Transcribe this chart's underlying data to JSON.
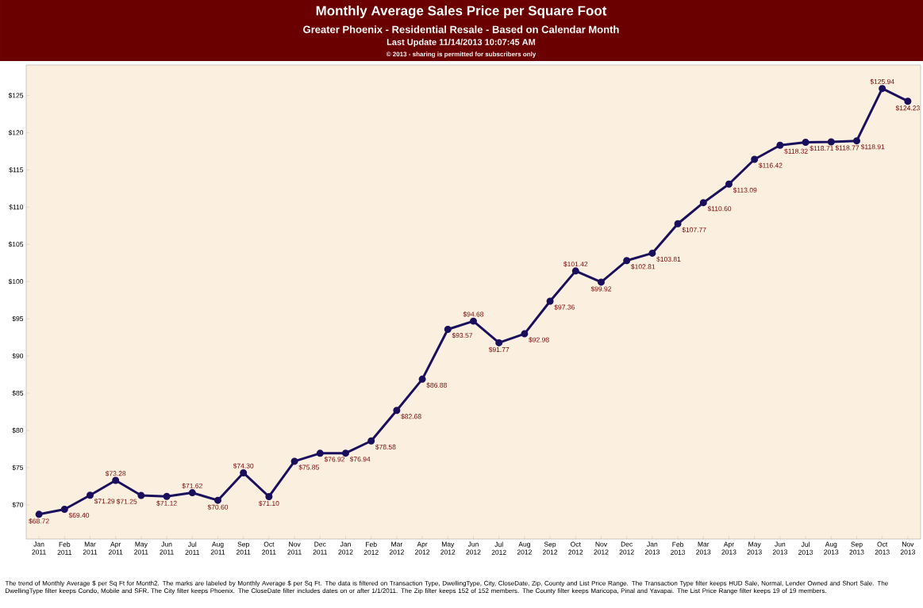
{
  "chart_data": {
    "type": "line",
    "title": "Monthly Average Sales Price per Square Foot",
    "subtitle": "Greater Phoenix - Residential Resale - Based on Calendar Month",
    "annotations": [
      "Last Update 11/14/2013 10:07:45 AM",
      "© 2013 - sharing is permitted for subscribers only",
      "The trend of Monthly Average $ per Sq Ft for Month2.  The marks are labeled by Monthly Average $ per Sq Ft. The data is filtered on Transaction Type, DwellingType, City, CloseDate, Zip, County and List Price Range. The Transaction Type filter keeps HUD Sale, Normal, Lender Owned and Short Sale. The DwellingType filter keeps Condo, Mobile and SFR. The City filter keeps Phoenix. The CloseDate filter includes dates on or after 1/1/2011. The Zip filter keeps 152 of 152 members. The County filter keeps Maricopa, Pinal and Yavapai. The List Price Range filter keeps 19 of 19 members."
    ],
    "categories": [
      "Jan 2011",
      "Feb 2011",
      "Mar 2011",
      "Apr 2011",
      "May 2011",
      "Jun 2011",
      "Jul 2011",
      "Aug 2011",
      "Sep 2011",
      "Oct 2011",
      "Nov 2011",
      "Dec 2011",
      "Jan 2012",
      "Feb 2012",
      "Mar 2012",
      "Apr 2012",
      "May 2012",
      "Jun 2012",
      "Jul 2012",
      "Aug 2012",
      "Sep 2012",
      "Oct 2012",
      "Nov 2012",
      "Dec 2012",
      "Jan 2013",
      "Feb 2013",
      "Mar 2013",
      "Apr 2013",
      "May 2013",
      "Jun 2013",
      "Jul 2013",
      "Aug 2013",
      "Sep 2013",
      "Oct 2013",
      "Nov 2013"
    ],
    "values": [
      68.72,
      69.4,
      71.29,
      73.28,
      71.25,
      71.12,
      71.62,
      70.6,
      74.3,
      71.1,
      75.85,
      76.92,
      76.94,
      78.58,
      82.68,
      86.88,
      93.57,
      94.68,
      91.77,
      92.98,
      97.36,
      101.42,
      99.92,
      102.81,
      103.81,
      107.77,
      110.6,
      113.09,
      116.42,
      118.32,
      118.71,
      118.77,
      118.91,
      125.94,
      124.23
    ],
    "value_labels": [
      "$68.72",
      "$69.40",
      "$71.29",
      "$73.28",
      "$71.25",
      "$71.12",
      "$71.62",
      "$70.60",
      "$74.30",
      "$71.10",
      "$75.85",
      "$76.92",
      "$76.94",
      "$78.58",
      "$82.68",
      "$86.88",
      "$93.57",
      "$94.68",
      "$91.77",
      "$92.98",
      "$97.36",
      "$101.42",
      "$99.92",
      "$102.81",
      "$103.81",
      "$107.77",
      "$110.60",
      "$113.09",
      "$116.42",
      "$118.32",
      "$118.71",
      "$118.77",
      "$118.91",
      "$125.94",
      "$124.23"
    ],
    "color": "#1a0f5c",
    "marker": "circle",
    "line_style": "solid",
    "ylim": [
      65.4,
      129.1
    ],
    "yticks": [
      {
        "value": 70,
        "label": "$70"
      },
      {
        "value": 75,
        "label": "$75"
      },
      {
        "value": 80,
        "label": "$80"
      },
      {
        "value": 85,
        "label": "$85"
      },
      {
        "value": 90,
        "label": "$90"
      },
      {
        "value": 95,
        "label": "$95"
      },
      {
        "value": 100,
        "label": "$100"
      },
      {
        "value": 105,
        "label": "$105"
      },
      {
        "value": 110,
        "label": "$110"
      },
      {
        "value": 115,
        "label": "$115"
      },
      {
        "value": 120,
        "label": "$120"
      },
      {
        "value": 125,
        "label": "$125"
      }
    ]
  }
}
